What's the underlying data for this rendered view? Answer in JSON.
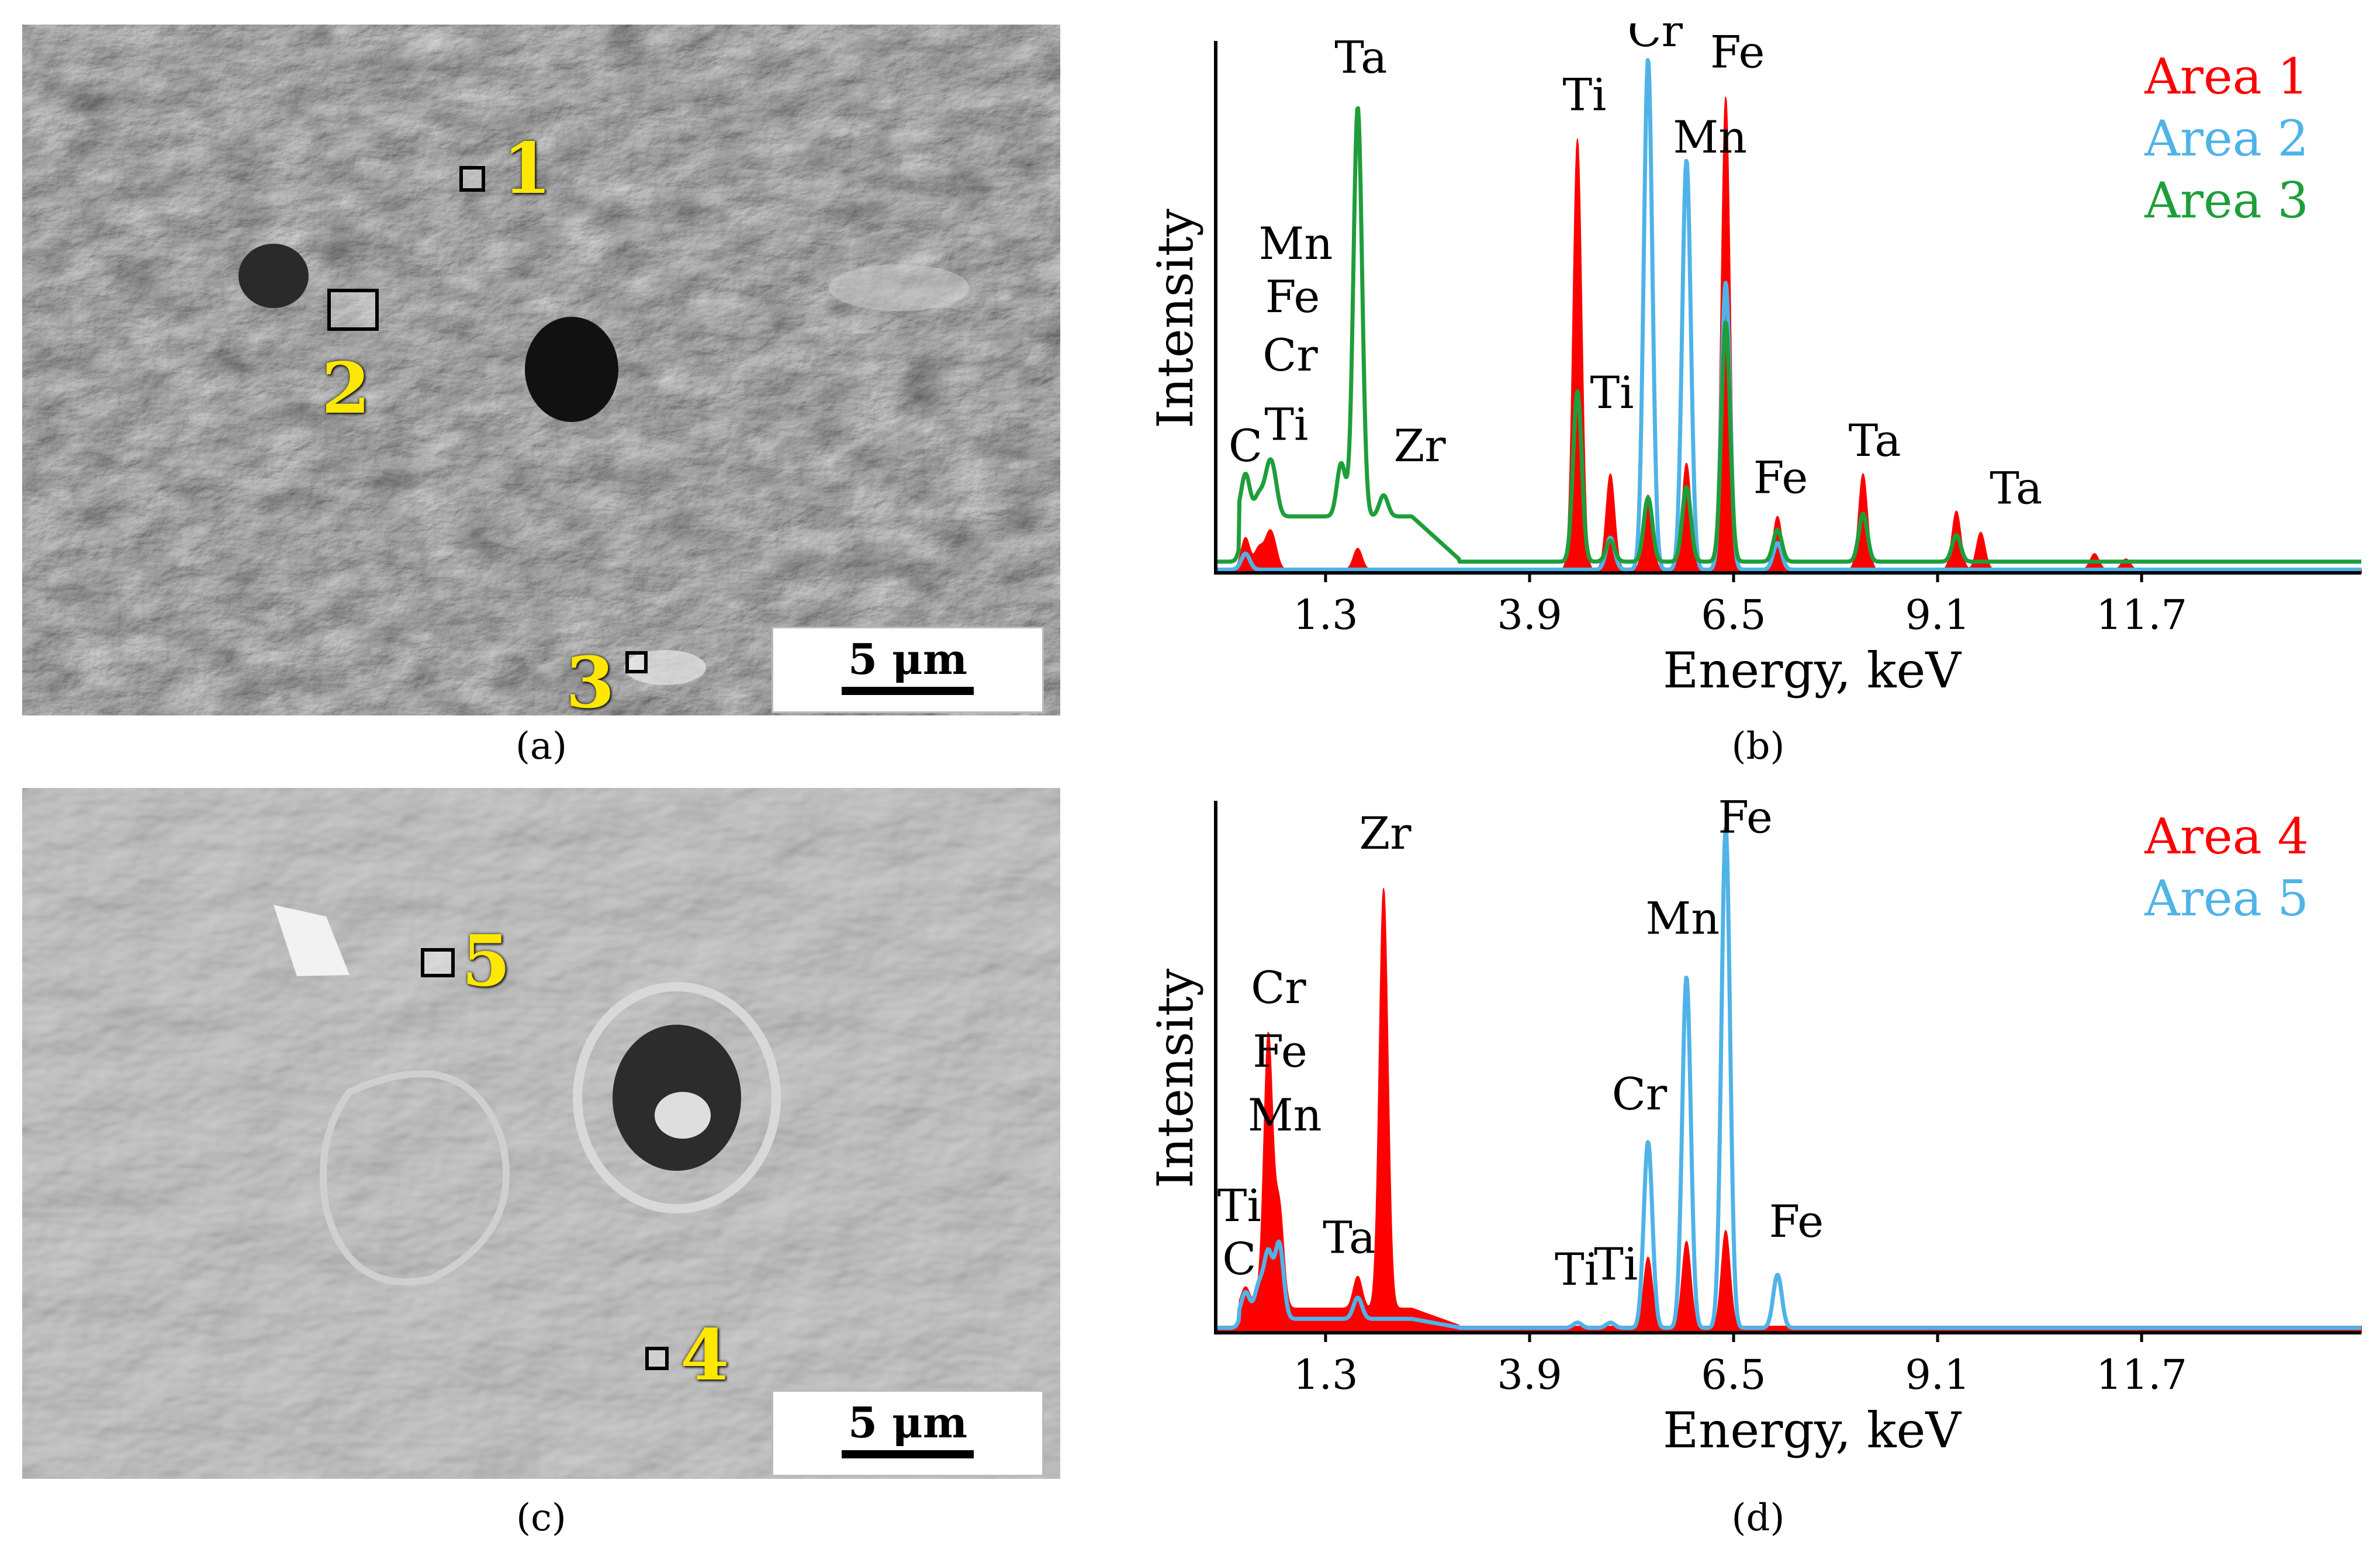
{
  "panels": {
    "a": {
      "caption": "(a)",
      "scale_label": "5 μm",
      "markers": [
        {
          "label": "1"
        },
        {
          "label": "2"
        },
        {
          "label": "3"
        }
      ]
    },
    "c": {
      "caption": "(c)",
      "scale_label": "5 μm",
      "markers": [
        {
          "label": "5"
        },
        {
          "label": "4"
        }
      ]
    }
  },
  "chart_data": [
    {
      "panel": "(b)",
      "type": "line",
      "xlabel": "Energy, keV",
      "ylabel": "Intensity",
      "x_ticks": [
        "1.3",
        "3.9",
        "6.5",
        "9.1",
        "11.7"
      ],
      "xlim": [
        -0.1,
        14.5
      ],
      "ylim": [
        0,
        100
      ],
      "legend_position": "top-right",
      "series": [
        {
          "name": "Area 1",
          "color": "#ff0000",
          "style": "filled",
          "peaks": [
            {
              "x": 0.28,
              "y": 6
            },
            {
              "x": 0.45,
              "y": 4
            },
            {
              "x": 0.57,
              "y": 5
            },
            {
              "x": 0.64,
              "y": 4
            },
            {
              "x": 1.71,
              "y": 4
            },
            {
              "x": 4.51,
              "y": 81
            },
            {
              "x": 4.93,
              "y": 18
            },
            {
              "x": 5.41,
              "y": 14
            },
            {
              "x": 5.9,
              "y": 20
            },
            {
              "x": 6.4,
              "y": 89
            },
            {
              "x": 7.06,
              "y": 10
            },
            {
              "x": 8.15,
              "y": 18
            },
            {
              "x": 9.34,
              "y": 11
            },
            {
              "x": 9.65,
              "y": 7
            },
            {
              "x": 11.1,
              "y": 3
            },
            {
              "x": 11.5,
              "y": 2
            }
          ]
        },
        {
          "name": "Area 2",
          "color": "#4fb3e8",
          "style": "line",
          "peaks": [
            {
              "x": 0.28,
              "y": 3
            },
            {
              "x": 4.93,
              "y": 6
            },
            {
              "x": 5.41,
              "y": 96
            },
            {
              "x": 5.9,
              "y": 77
            },
            {
              "x": 6.4,
              "y": 54
            },
            {
              "x": 7.06,
              "y": 5
            }
          ]
        },
        {
          "name": "Area 3",
          "color": "#1e9e3a",
          "style": "line",
          "baseline": 10,
          "peaks": [
            {
              "x": 0.28,
              "y": 18
            },
            {
              "x": 0.45,
              "y": 14
            },
            {
              "x": 0.57,
              "y": 17
            },
            {
              "x": 0.64,
              "y": 16
            },
            {
              "x": 1.5,
              "y": 10
            },
            {
              "x": 1.71,
              "y": 87
            },
            {
              "x": 2.04,
              "y": 14
            },
            {
              "x": 4.51,
              "y": 42
            },
            {
              "x": 4.93,
              "y": 14
            },
            {
              "x": 5.41,
              "y": 22
            },
            {
              "x": 5.9,
              "y": 24
            },
            {
              "x": 6.4,
              "y": 55
            },
            {
              "x": 7.06,
              "y": 6
            },
            {
              "x": 8.15,
              "y": 9
            },
            {
              "x": 9.34,
              "y": 5
            }
          ]
        }
      ],
      "annotations": [
        {
          "text": "Ta",
          "x": 1.75,
          "y": 94
        },
        {
          "text": "Ti",
          "x": 4.6,
          "y": 87
        },
        {
          "text": "Cr",
          "x": 5.5,
          "y": 99
        },
        {
          "text": "Fe",
          "x": 6.55,
          "y": 95
        },
        {
          "text": "Mn",
          "x": 6.2,
          "y": 79
        },
        {
          "text": "Mn",
          "x": 0.92,
          "y": 59
        },
        {
          "text": "Fe",
          "x": 0.88,
          "y": 49
        },
        {
          "text": "Cr",
          "x": 0.85,
          "y": 38
        },
        {
          "text": "Ti",
          "x": 4.95,
          "y": 31
        },
        {
          "text": "C",
          "x": 0.28,
          "y": 21
        },
        {
          "text": "Ti",
          "x": 0.8,
          "y": 25
        },
        {
          "text": "Zr",
          "x": 2.5,
          "y": 21
        },
        {
          "text": "Fe",
          "x": 7.1,
          "y": 15
        },
        {
          "text": "Ta",
          "x": 8.3,
          "y": 22
        },
        {
          "text": "Ta",
          "x": 10.1,
          "y": 13
        }
      ]
    },
    {
      "panel": "(d)",
      "type": "line",
      "xlabel": "Energy, keV",
      "ylabel": "Intensity",
      "x_ticks": [
        "1.3",
        "3.9",
        "6.5",
        "9.1",
        "11.7"
      ],
      "xlim": [
        -0.1,
        14.5
      ],
      "ylim": [
        0,
        100
      ],
      "legend_position": "top-right",
      "series": [
        {
          "name": "Area 4",
          "color": "#ff0000",
          "style": "filled",
          "baseline": 4,
          "peaks": [
            {
              "x": 0.28,
              "y": 8
            },
            {
              "x": 0.45,
              "y": 6
            },
            {
              "x": 0.57,
              "y": 55
            },
            {
              "x": 0.71,
              "y": 23
            },
            {
              "x": 1.71,
              "y": 10
            },
            {
              "x": 2.04,
              "y": 83
            },
            {
              "x": 5.41,
              "y": 17
            },
            {
              "x": 5.9,
              "y": 20
            },
            {
              "x": 6.4,
              "y": 22
            }
          ]
        },
        {
          "name": "Area 5",
          "color": "#4fb3e8",
          "style": "line",
          "baseline": 2,
          "peaks": [
            {
              "x": 0.28,
              "y": 7
            },
            {
              "x": 0.45,
              "y": 8
            },
            {
              "x": 0.57,
              "y": 14
            },
            {
              "x": 0.71,
              "y": 16
            },
            {
              "x": 1.71,
              "y": 6
            },
            {
              "x": 4.51,
              "y": 3
            },
            {
              "x": 4.93,
              "y": 3
            },
            {
              "x": 5.41,
              "y": 37
            },
            {
              "x": 5.9,
              "y": 68
            },
            {
              "x": 6.4,
              "y": 96
            },
            {
              "x": 7.06,
              "y": 12
            }
          ]
        }
      ],
      "annotations": [
        {
          "text": "Zr",
          "x": 2.06,
          "y": 91
        },
        {
          "text": "Fe",
          "x": 6.65,
          "y": 94
        },
        {
          "text": "Mn",
          "x": 5.85,
          "y": 75
        },
        {
          "text": "Cr",
          "x": 0.7,
          "y": 62
        },
        {
          "text": "Fe",
          "x": 0.72,
          "y": 50
        },
        {
          "text": "Mn",
          "x": 0.78,
          "y": 38
        },
        {
          "text": "Cr",
          "x": 5.3,
          "y": 42
        },
        {
          "text": "Ti",
          "x": 0.2,
          "y": 21
        },
        {
          "text": "C",
          "x": 0.2,
          "y": 11
        },
        {
          "text": "Ta",
          "x": 1.6,
          "y": 15
        },
        {
          "text": "Ti",
          "x": 4.5,
          "y": 9
        },
        {
          "text": "Ti",
          "x": 5.0,
          "y": 10
        },
        {
          "text": "Fe",
          "x": 7.3,
          "y": 18
        }
      ]
    }
  ],
  "captions": {
    "b": "(b)",
    "d": "(d)"
  }
}
